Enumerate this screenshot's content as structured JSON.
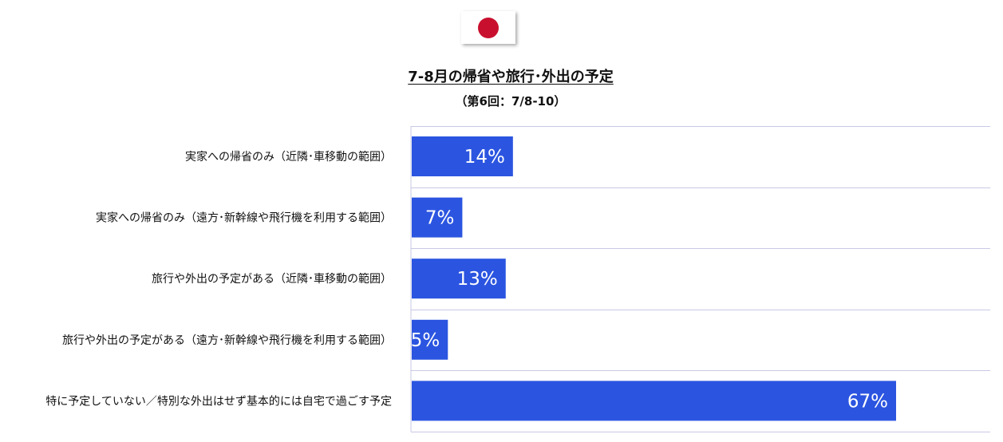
{
  "header": {
    "flag_icon": "japan-flag-icon",
    "flag_color": "#c8102e",
    "title": "7-8月の帰省や旅行･外出の予定",
    "subtitle": "（第6回：7/8-10）"
  },
  "chart_data": {
    "type": "bar",
    "orientation": "horizontal",
    "title": "7-8月の帰省や旅行･外出の予定",
    "subtitle": "（第6回：7/8-10）",
    "categories": [
      "実家への帰省のみ（近隣･車移動の範囲）",
      "実家への帰省のみ（遠方･新幹線や飛行機を利用する範囲）",
      "旅行や外出の予定がある（近隣･車移動の範囲）",
      "旅行や外出の予定がある（遠方･新幹線や飛行機を利用する範囲）",
      "特に予定していない／特別な外出はせず基本的には自宅で過ごす予定"
    ],
    "values": [
      14,
      7,
      13,
      5,
      67
    ],
    "value_labels": [
      "14%",
      "7%",
      "13%",
      "5%",
      "67%"
    ],
    "unit": "%",
    "xlim": [
      0,
      67
    ],
    "bar_color": "#2b55e0",
    "grid_color": "#c8c8e6",
    "grid": true,
    "legend": "none"
  }
}
